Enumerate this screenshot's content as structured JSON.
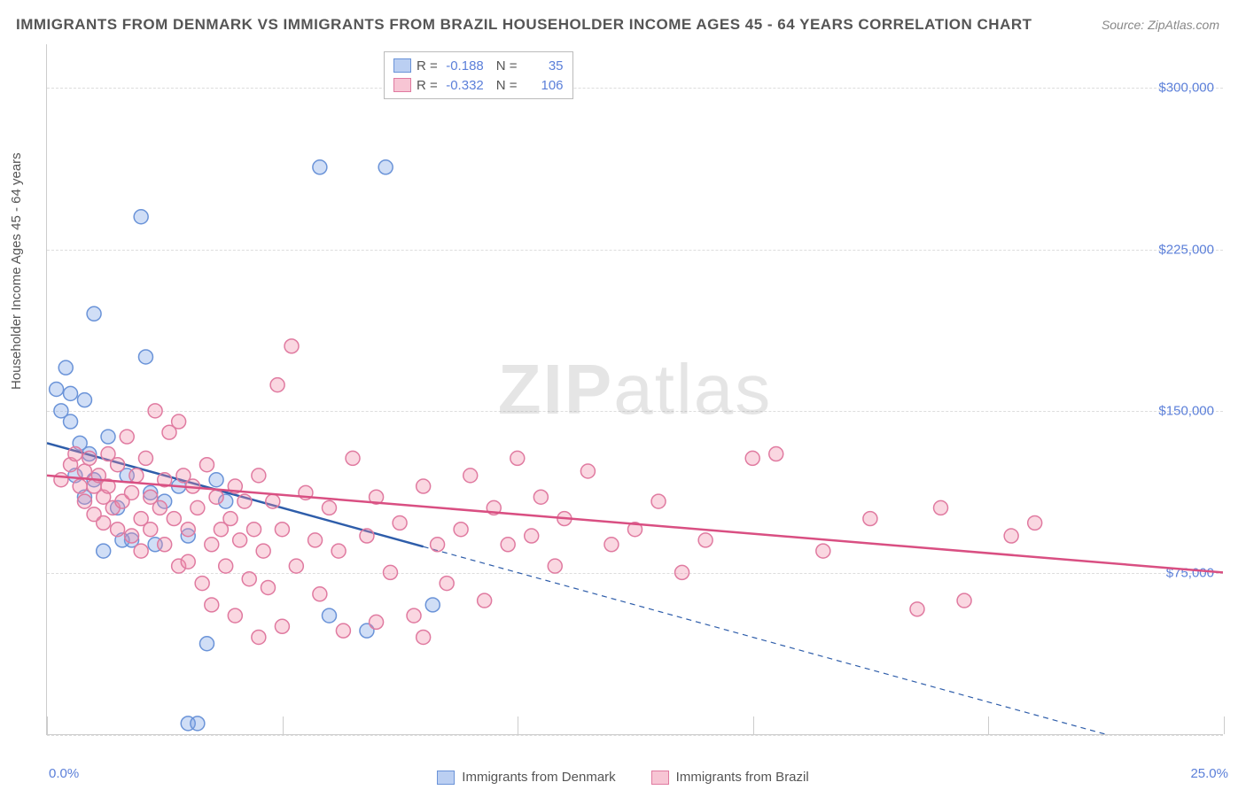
{
  "title": "IMMIGRANTS FROM DENMARK VS IMMIGRANTS FROM BRAZIL HOUSEHOLDER INCOME AGES 45 - 64 YEARS CORRELATION CHART",
  "source": "Source: ZipAtlas.com",
  "y_axis_title": "Householder Income Ages 45 - 64 years",
  "watermark_prefix": "ZIP",
  "watermark_suffix": "atlas",
  "chart": {
    "type": "scatter",
    "xlim": [
      0,
      25
    ],
    "ylim": [
      0,
      320000
    ],
    "x_ticks_pct": [
      0,
      5,
      10,
      15,
      20,
      25
    ],
    "x_tick_labels": [
      "0.0%",
      "",
      "",
      "",
      "",
      "25.0%"
    ],
    "y_ticks": [
      75000,
      150000,
      225000,
      300000
    ],
    "y_tick_labels": [
      "$75,000",
      "$150,000",
      "$225,000",
      "$300,000"
    ],
    "grid_h": [
      0,
      75000,
      150000,
      225000,
      300000
    ],
    "grid_color": "#dddddd",
    "background_color": "#ffffff",
    "marker_radius": 8,
    "marker_stroke_width": 1.5,
    "line_width": 2.5,
    "series": [
      {
        "name": "Immigrants from Denmark",
        "fill_color": "rgba(120,160,230,0.35)",
        "stroke_color": "#6a93d8",
        "line_color": "#2e5daa",
        "R": "-0.188",
        "N": "35",
        "trend": {
          "x1": 0,
          "y1": 135000,
          "x2": 25,
          "y2": -15000,
          "solid_until_x": 8.0
        },
        "points": [
          [
            0.2,
            160000
          ],
          [
            0.3,
            150000
          ],
          [
            0.4,
            170000
          ],
          [
            0.5,
            158000
          ],
          [
            0.5,
            145000
          ],
          [
            0.6,
            120000
          ],
          [
            0.7,
            135000
          ],
          [
            0.8,
            110000
          ],
          [
            0.8,
            155000
          ],
          [
            0.9,
            130000
          ],
          [
            1.0,
            118000
          ],
          [
            1.0,
            195000
          ],
          [
            1.2,
            85000
          ],
          [
            1.3,
            138000
          ],
          [
            1.5,
            105000
          ],
          [
            1.7,
            120000
          ],
          [
            1.8,
            90000
          ],
          [
            2.0,
            240000
          ],
          [
            2.2,
            112000
          ],
          [
            2.3,
            88000
          ],
          [
            2.5,
            108000
          ],
          [
            2.8,
            115000
          ],
          [
            3.0,
            92000
          ],
          [
            3.0,
            5000
          ],
          [
            3.2,
            5000
          ],
          [
            3.4,
            42000
          ],
          [
            3.6,
            118000
          ],
          [
            3.8,
            108000
          ],
          [
            5.8,
            263000
          ],
          [
            6.0,
            55000
          ],
          [
            6.8,
            48000
          ],
          [
            7.2,
            263000
          ],
          [
            8.2,
            60000
          ],
          [
            2.1,
            175000
          ],
          [
            1.6,
            90000
          ]
        ]
      },
      {
        "name": "Immigrants from Brazil",
        "fill_color": "rgba(240,140,170,0.35)",
        "stroke_color": "#e07aa0",
        "line_color": "#d94f82",
        "R": "-0.332",
        "N": "106",
        "trend": {
          "x1": 0,
          "y1": 120000,
          "x2": 25,
          "y2": 75000,
          "solid_until_x": 25
        },
        "points": [
          [
            0.3,
            118000
          ],
          [
            0.5,
            125000
          ],
          [
            0.6,
            130000
          ],
          [
            0.7,
            115000
          ],
          [
            0.8,
            122000
          ],
          [
            0.8,
            108000
          ],
          [
            0.9,
            128000
          ],
          [
            1.0,
            115000
          ],
          [
            1.0,
            102000
          ],
          [
            1.1,
            120000
          ],
          [
            1.2,
            110000
          ],
          [
            1.2,
            98000
          ],
          [
            1.3,
            130000
          ],
          [
            1.3,
            115000
          ],
          [
            1.4,
            105000
          ],
          [
            1.5,
            125000
          ],
          [
            1.5,
            95000
          ],
          [
            1.6,
            108000
          ],
          [
            1.7,
            138000
          ],
          [
            1.8,
            112000
          ],
          [
            1.8,
            92000
          ],
          [
            1.9,
            120000
          ],
          [
            2.0,
            100000
          ],
          [
            2.0,
            85000
          ],
          [
            2.1,
            128000
          ],
          [
            2.2,
            110000
          ],
          [
            2.2,
            95000
          ],
          [
            2.3,
            150000
          ],
          [
            2.4,
            105000
          ],
          [
            2.5,
            118000
          ],
          [
            2.5,
            88000
          ],
          [
            2.6,
            140000
          ],
          [
            2.7,
            100000
          ],
          [
            2.8,
            145000
          ],
          [
            2.8,
            78000
          ],
          [
            2.9,
            120000
          ],
          [
            3.0,
            95000
          ],
          [
            3.0,
            80000
          ],
          [
            3.1,
            115000
          ],
          [
            3.2,
            105000
          ],
          [
            3.3,
            70000
          ],
          [
            3.4,
            125000
          ],
          [
            3.5,
            88000
          ],
          [
            3.5,
            60000
          ],
          [
            3.6,
            110000
          ],
          [
            3.7,
            95000
          ],
          [
            3.8,
            78000
          ],
          [
            3.9,
            100000
          ],
          [
            4.0,
            115000
          ],
          [
            4.0,
            55000
          ],
          [
            4.1,
            90000
          ],
          [
            4.2,
            108000
          ],
          [
            4.3,
            72000
          ],
          [
            4.4,
            95000
          ],
          [
            4.5,
            120000
          ],
          [
            4.6,
            85000
          ],
          [
            4.7,
            68000
          ],
          [
            4.8,
            108000
          ],
          [
            4.9,
            162000
          ],
          [
            5.0,
            95000
          ],
          [
            5.2,
            180000
          ],
          [
            5.3,
            78000
          ],
          [
            5.5,
            112000
          ],
          [
            5.7,
            90000
          ],
          [
            5.8,
            65000
          ],
          [
            6.0,
            105000
          ],
          [
            6.2,
            85000
          ],
          [
            6.5,
            128000
          ],
          [
            6.8,
            92000
          ],
          [
            7.0,
            110000
          ],
          [
            7.3,
            75000
          ],
          [
            7.5,
            98000
          ],
          [
            7.8,
            55000
          ],
          [
            8.0,
            115000
          ],
          [
            8.3,
            88000
          ],
          [
            8.5,
            70000
          ],
          [
            8.8,
            95000
          ],
          [
            9.0,
            120000
          ],
          [
            9.3,
            62000
          ],
          [
            9.5,
            105000
          ],
          [
            9.8,
            88000
          ],
          [
            10.0,
            128000
          ],
          [
            10.3,
            92000
          ],
          [
            10.5,
            110000
          ],
          [
            10.8,
            78000
          ],
          [
            11.0,
            100000
          ],
          [
            11.5,
            122000
          ],
          [
            12.0,
            88000
          ],
          [
            12.5,
            95000
          ],
          [
            13.0,
            108000
          ],
          [
            13.5,
            75000
          ],
          [
            14.0,
            90000
          ],
          [
            15.0,
            128000
          ],
          [
            15.5,
            130000
          ],
          [
            16.5,
            85000
          ],
          [
            17.5,
            100000
          ],
          [
            18.5,
            58000
          ],
          [
            19.0,
            105000
          ],
          [
            19.5,
            62000
          ],
          [
            20.5,
            92000
          ],
          [
            21.0,
            98000
          ],
          [
            4.5,
            45000
          ],
          [
            5.0,
            50000
          ],
          [
            6.3,
            48000
          ],
          [
            7.0,
            52000
          ],
          [
            8.0,
            45000
          ]
        ]
      }
    ]
  },
  "bottom_legend": [
    {
      "label": "Immigrants from Denmark",
      "fill": "rgba(120,160,230,0.5)",
      "stroke": "#6a93d8"
    },
    {
      "label": "Immigrants from Brazil",
      "fill": "rgba(240,140,170,0.5)",
      "stroke": "#e07aa0"
    }
  ]
}
